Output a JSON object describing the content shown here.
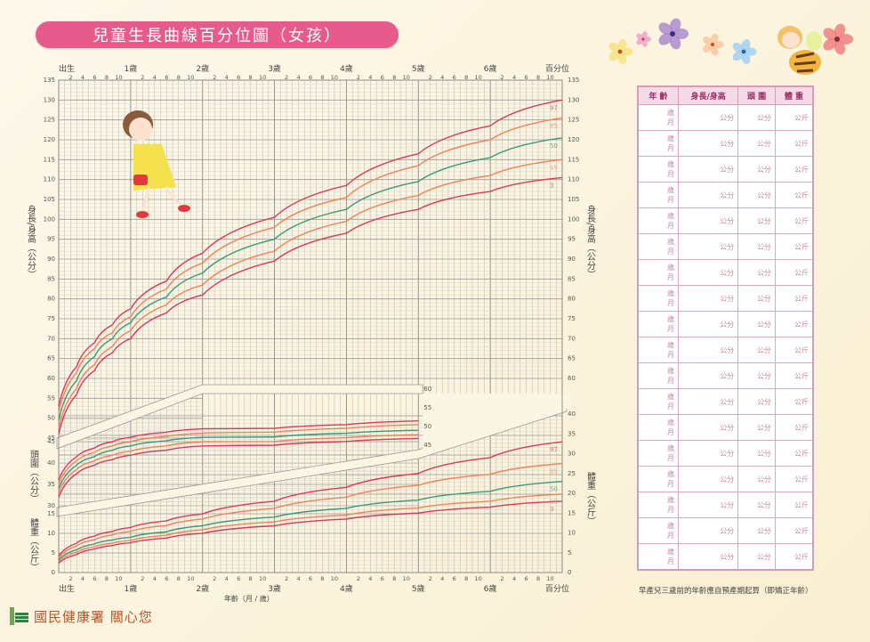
{
  "title": "兒童生長曲線百分位圖（女孩）",
  "x_axis": {
    "year_labels": [
      "出生",
      "1歲",
      "2歲",
      "3歲",
      "4歲",
      "5歲",
      "6歲",
      "百分位"
    ],
    "month_ticks": [
      "2",
      "4",
      "6",
      "8",
      "10"
    ],
    "label": "年齡（月 / 歲）"
  },
  "height_panel": {
    "label": "身長/身高（公分）",
    "ticks": [
      135,
      130,
      125,
      120,
      115,
      110,
      105,
      100,
      95,
      90,
      85,
      80,
      75,
      70,
      65,
      60,
      55,
      50,
      45
    ]
  },
  "head_panel": {
    "label": "頭圍（公分）",
    "left_ticks": [
      45,
      40,
      35,
      30
    ],
    "right_ticks": [
      60,
      55,
      50,
      45
    ]
  },
  "weight_panel": {
    "label": "體重（公斤）",
    "left_ticks": [
      15,
      10,
      5,
      0
    ],
    "right_ticks": [
      40,
      35,
      30,
      25,
      20,
      15,
      10,
      5,
      0
    ]
  },
  "percentile_labels": [
    "97",
    "85",
    "50",
    "15",
    "3"
  ],
  "colors": {
    "title_bg": "#e65b8c",
    "p97": "#d83a5a",
    "p85": "#f0835a",
    "p50": "#3a9a78",
    "p15": "#f0835a",
    "p3": "#d83a5a",
    "grid": "#9a9a9a",
    "table_border": "#d79ab8"
  },
  "chart_data": [
    {
      "type": "line",
      "title": "身長/身高 (公分)",
      "xlabel": "年齡（月）",
      "ylabel": "身長/身高（公分）",
      "x": [
        0,
        3,
        6,
        9,
        12,
        18,
        24,
        36,
        48,
        60,
        72,
        84
      ],
      "series": [
        {
          "name": "97",
          "values": [
            53.0,
            63.0,
            69.0,
            73.5,
            77.5,
            84.5,
            91.5,
            100.5,
            108.5,
            116.5,
            123.5,
            130.0
          ]
        },
        {
          "name": "85",
          "values": [
            51.5,
            61.5,
            67.5,
            71.5,
            75.5,
            82.5,
            89.0,
            98.0,
            105.5,
            113.5,
            120.0,
            125.5
          ]
        },
        {
          "name": "50",
          "values": [
            49.5,
            59.5,
            65.5,
            70.0,
            74.0,
            80.5,
            86.5,
            95.0,
            102.5,
            109.5,
            115.5,
            120.5
          ]
        },
        {
          "name": "15",
          "values": [
            47.5,
            57.5,
            63.5,
            68.0,
            72.0,
            78.5,
            83.5,
            92.0,
            99.5,
            106.0,
            111.0,
            115.0
          ]
        },
        {
          "name": "3",
          "values": [
            46.0,
            56.0,
            62.0,
            66.5,
            70.0,
            76.5,
            81.0,
            89.5,
            96.5,
            102.5,
            107.0,
            110.5
          ]
        }
      ],
      "ylim": [
        45,
        135
      ],
      "grid": true
    },
    {
      "type": "line",
      "title": "頭圍 (公分)",
      "xlabel": "年齡（月）",
      "ylabel": "頭圍（公分）",
      "x": [
        0,
        3,
        6,
        9,
        12,
        18,
        24,
        36,
        48,
        60
      ],
      "series": [
        {
          "name": "97",
          "values": [
            36.0,
            41.5,
            43.5,
            45.0,
            46.0,
            47.2,
            48.0,
            49.5,
            50.5,
            51.5
          ]
        },
        {
          "name": "85",
          "values": [
            35.0,
            40.5,
            42.5,
            44.0,
            45.0,
            46.2,
            47.0,
            48.5,
            49.5,
            50.5
          ]
        },
        {
          "name": "50",
          "values": [
            34.0,
            39.5,
            41.5,
            43.0,
            44.0,
            45.2,
            46.0,
            47.2,
            48.2,
            49.0
          ]
        },
        {
          "name": "15",
          "values": [
            33.0,
            38.5,
            40.5,
            41.8,
            42.8,
            44.0,
            45.0,
            46.0,
            47.0,
            47.8
          ]
        },
        {
          "name": "3",
          "values": [
            32.0,
            37.5,
            39.5,
            40.8,
            41.8,
            43.0,
            44.0,
            45.0,
            46.0,
            46.8
          ]
        }
      ],
      "ylim": [
        30,
        60
      ],
      "grid": true
    },
    {
      "type": "line",
      "title": "體重 (公斤)",
      "xlabel": "年齡（月）",
      "ylabel": "體重（公斤）",
      "x": [
        0,
        3,
        6,
        9,
        12,
        18,
        24,
        36,
        48,
        60,
        72,
        84
      ],
      "series": [
        {
          "name": "97",
          "values": [
            4.2,
            7.5,
            9.3,
            10.5,
            11.5,
            13.2,
            14.8,
            18.0,
            21.5,
            25.0,
            29.0,
            33.0
          ]
        },
        {
          "name": "85",
          "values": [
            3.7,
            6.8,
            8.4,
            9.6,
            10.5,
            12.0,
            13.5,
            16.2,
            19.0,
            22.0,
            24.8,
            27.5
          ]
        },
        {
          "name": "50",
          "values": [
            3.2,
            5.8,
            7.3,
            8.3,
            9.0,
            10.4,
            11.8,
            14.0,
            16.2,
            18.3,
            20.5,
            23.0
          ]
        },
        {
          "name": "15",
          "values": [
            2.8,
            5.2,
            6.6,
            7.5,
            8.2,
            9.5,
            10.8,
            12.8,
            14.5,
            16.3,
            18.0,
            19.8
          ]
        },
        {
          "name": "3",
          "values": [
            2.4,
            4.6,
            6.0,
            6.9,
            7.6,
            8.8,
            9.9,
            11.8,
            13.5,
            15.0,
            16.5,
            18.0
          ]
        }
      ],
      "ylim": [
        0,
        40
      ],
      "grid": true
    }
  ],
  "record_table": {
    "headers": [
      "年 齡",
      "身長/身高",
      "頭 圍",
      "體 重"
    ],
    "row_count": 18,
    "age_units": [
      "歲",
      "月"
    ],
    "unit_cm": "公分",
    "unit_kg": "公斤"
  },
  "note": "早產兒三歲前的年齡應自預產期起算（即矯正年齡）",
  "footer": "國民健康署  關心您"
}
